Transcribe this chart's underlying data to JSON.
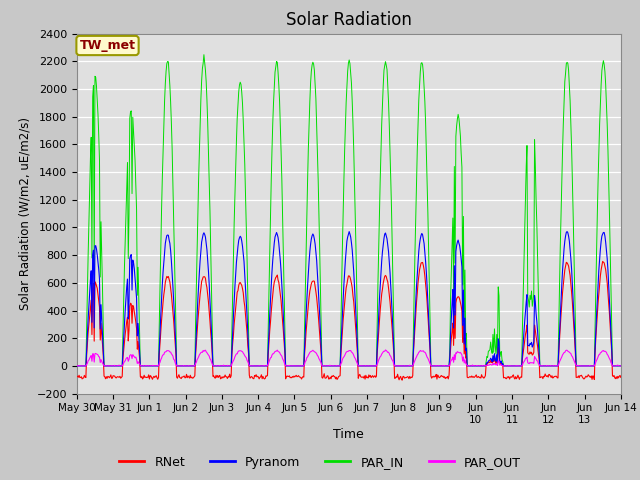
{
  "title": "Solar Radiation",
  "ylabel": "Solar Radiation (W/m2, uE/m2/s)",
  "xlabel": "Time",
  "ylim": [
    -200,
    2400
  ],
  "yticks": [
    -200,
    0,
    200,
    400,
    600,
    800,
    1000,
    1200,
    1400,
    1600,
    1800,
    2000,
    2200,
    2400
  ],
  "fig_bg_color": "#c8c8c8",
  "plot_bg_color": "#e0e0e0",
  "station_label": "TW_met",
  "station_label_color": "#8b0000",
  "station_box_facecolor": "#fffacd",
  "station_box_edgecolor": "#999900",
  "colors": {
    "RNet": "#ff0000",
    "Pyranom": "#0000ff",
    "PAR_IN": "#00dd00",
    "PAR_OUT": "#ff00ff"
  },
  "legend_labels": [
    "RNet",
    "Pyranom",
    "PAR_IN",
    "PAR_OUT"
  ],
  "n_days": 15,
  "points_per_day": 48,
  "xtick_labels": [
    "May 30",
    "May 31",
    "Jun 1",
    "Jun 2",
    "Jun 3",
    "Jun 4",
    "Jun 5",
    "Jun 6",
    "Jun 7",
    "Jun 8",
    "Jun 9",
    "Jun\n10",
    "Jun\n11",
    "Jun\n12",
    "Jun\n13",
    "Jun 14"
  ],
  "seed": 42
}
